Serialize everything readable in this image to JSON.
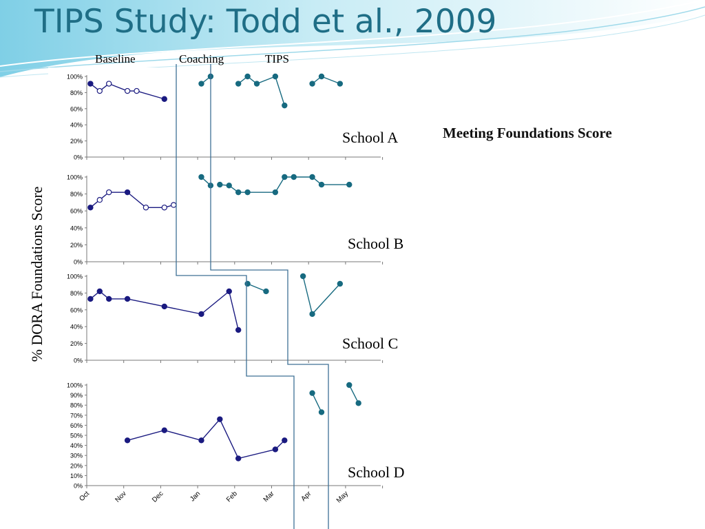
{
  "slide": {
    "title": "TIPS Study: Todd et al., 2009",
    "phases": [
      "Baseline",
      "Coaching",
      "TIPS"
    ],
    "side_note": "Meeting Foundations Score",
    "y_axis_label": "% DORA Foundations Score",
    "schools": [
      "School A",
      "School B",
      "School C",
      "School D"
    ]
  },
  "colors": {
    "title": "#1f6e86",
    "baseline_series": "#1a1a80",
    "intervention_series": "#176a80",
    "phase_line": "#3d6f95"
  },
  "chart_data": [
    {
      "type": "line",
      "title": "School A",
      "ylim": [
        0,
        100
      ],
      "yticks": [
        "0%",
        "20%",
        "40%",
        "60%",
        "80%",
        "100%"
      ],
      "series": [
        {
          "phase": "baseline",
          "points": [
            {
              "x": 0.1,
              "y": 91,
              "filled": true
            },
            {
              "x": 0.35,
              "y": 82,
              "filled": false
            },
            {
              "x": 0.6,
              "y": 91,
              "filled": false
            },
            {
              "x": 1.1,
              "y": 82,
              "filled": false
            },
            {
              "x": 1.35,
              "y": 82,
              "filled": false
            },
            {
              "x": 2.1,
              "y": 72,
              "filled": true
            }
          ]
        },
        {
          "phase": "tips",
          "points": [
            {
              "x": 3.1,
              "y": 91,
              "filled": true
            },
            {
              "x": 3.35,
              "y": 100,
              "filled": true
            }
          ]
        },
        {
          "phase": "tips",
          "points": [
            {
              "x": 4.1,
              "y": 91,
              "filled": true
            },
            {
              "x": 4.35,
              "y": 100,
              "filled": true
            },
            {
              "x": 4.6,
              "y": 91,
              "filled": true
            },
            {
              "x": 5.1,
              "y": 100,
              "filled": true
            },
            {
              "x": 5.35,
              "y": 64,
              "filled": true
            }
          ]
        },
        {
          "phase": "tips",
          "points": [
            {
              "x": 6.1,
              "y": 91,
              "filled": true
            },
            {
              "x": 6.35,
              "y": 100,
              "filled": true
            },
            {
              "x": 6.85,
              "y": 91,
              "filled": true
            }
          ]
        }
      ]
    },
    {
      "type": "line",
      "title": "School B",
      "ylim": [
        0,
        100
      ],
      "yticks": [
        "0%",
        "20%",
        "40%",
        "60%",
        "80%",
        "100%"
      ],
      "series": [
        {
          "phase": "baseline",
          "points": [
            {
              "x": 0.1,
              "y": 64,
              "filled": true
            },
            {
              "x": 0.35,
              "y": 73,
              "filled": false
            },
            {
              "x": 0.6,
              "y": 82,
              "filled": false
            },
            {
              "x": 1.1,
              "y": 82,
              "filled": true
            },
            {
              "x": 1.6,
              "y": 64,
              "filled": false
            },
            {
              "x": 2.1,
              "y": 64,
              "filled": false
            },
            {
              "x": 2.35,
              "y": 67,
              "filled": false
            }
          ]
        },
        {
          "phase": "tips",
          "points": [
            {
              "x": 3.1,
              "y": 100,
              "filled": true
            },
            {
              "x": 3.35,
              "y": 90,
              "filled": true
            }
          ]
        },
        {
          "phase": "tips",
          "points": [
            {
              "x": 3.6,
              "y": 91,
              "filled": true
            },
            {
              "x": 3.85,
              "y": 90,
              "filled": true
            },
            {
              "x": 4.1,
              "y": 82,
              "filled": true
            },
            {
              "x": 4.35,
              "y": 82,
              "filled": true
            },
            {
              "x": 5.1,
              "y": 82,
              "filled": true
            },
            {
              "x": 5.35,
              "y": 100,
              "filled": true
            },
            {
              "x": 5.6,
              "y": 100,
              "filled": true
            },
            {
              "x": 6.1,
              "y": 100,
              "filled": true
            },
            {
              "x": 6.35,
              "y": 91,
              "filled": true
            },
            {
              "x": 7.1,
              "y": 91,
              "filled": true
            }
          ]
        }
      ]
    },
    {
      "type": "line",
      "title": "School C",
      "ylim": [
        0,
        100
      ],
      "yticks": [
        "0%",
        "20%",
        "40%",
        "60%",
        "80%",
        "100%"
      ],
      "series": [
        {
          "phase": "baseline",
          "points": [
            {
              "x": 0.1,
              "y": 73,
              "filled": true
            },
            {
              "x": 0.35,
              "y": 82,
              "filled": true
            },
            {
              "x": 0.6,
              "y": 73,
              "filled": true
            },
            {
              "x": 1.1,
              "y": 73,
              "filled": true
            },
            {
              "x": 2.1,
              "y": 64,
              "filled": true
            },
            {
              "x": 3.1,
              "y": 55,
              "filled": true
            },
            {
              "x": 3.85,
              "y": 82,
              "filled": true
            },
            {
              "x": 4.1,
              "y": 36,
              "filled": true
            }
          ]
        },
        {
          "phase": "tips",
          "points": [
            {
              "x": 4.35,
              "y": 91,
              "filled": true
            },
            {
              "x": 4.85,
              "y": 82,
              "filled": true
            }
          ]
        },
        {
          "phase": "tips",
          "points": [
            {
              "x": 5.85,
              "y": 100,
              "filled": true
            },
            {
              "x": 6.1,
              "y": 55,
              "filled": true
            },
            {
              "x": 6.85,
              "y": 91,
              "filled": true
            }
          ]
        }
      ]
    },
    {
      "type": "line",
      "title": "School D",
      "ylim": [
        0,
        100
      ],
      "yticks": [
        "0%",
        "10%",
        "20%",
        "30%",
        "40%",
        "50%",
        "60%",
        "70%",
        "80%",
        "90%",
        "100%"
      ],
      "xticks": [
        "Oct",
        "Nov",
        "Dec",
        "Jan",
        "Feb",
        "Mar",
        "Apr",
        "May"
      ],
      "series": [
        {
          "phase": "baseline",
          "points": [
            {
              "x": 1.1,
              "y": 45,
              "filled": true
            },
            {
              "x": 2.1,
              "y": 55,
              "filled": true
            },
            {
              "x": 3.1,
              "y": 45,
              "filled": true
            },
            {
              "x": 3.6,
              "y": 66,
              "filled": true
            },
            {
              "x": 4.1,
              "y": 27,
              "filled": true
            },
            {
              "x": 5.1,
              "y": 36,
              "filled": true
            },
            {
              "x": 5.35,
              "y": 45,
              "filled": true
            }
          ]
        },
        {
          "phase": "tips",
          "points": [
            {
              "x": 6.1,
              "y": 92,
              "filled": true
            },
            {
              "x": 6.35,
              "y": 73,
              "filled": true
            }
          ]
        },
        {
          "phase": "tips",
          "points": [
            {
              "x": 7.1,
              "y": 100,
              "filled": true
            },
            {
              "x": 7.35,
              "y": 82,
              "filled": true
            }
          ]
        }
      ]
    }
  ]
}
